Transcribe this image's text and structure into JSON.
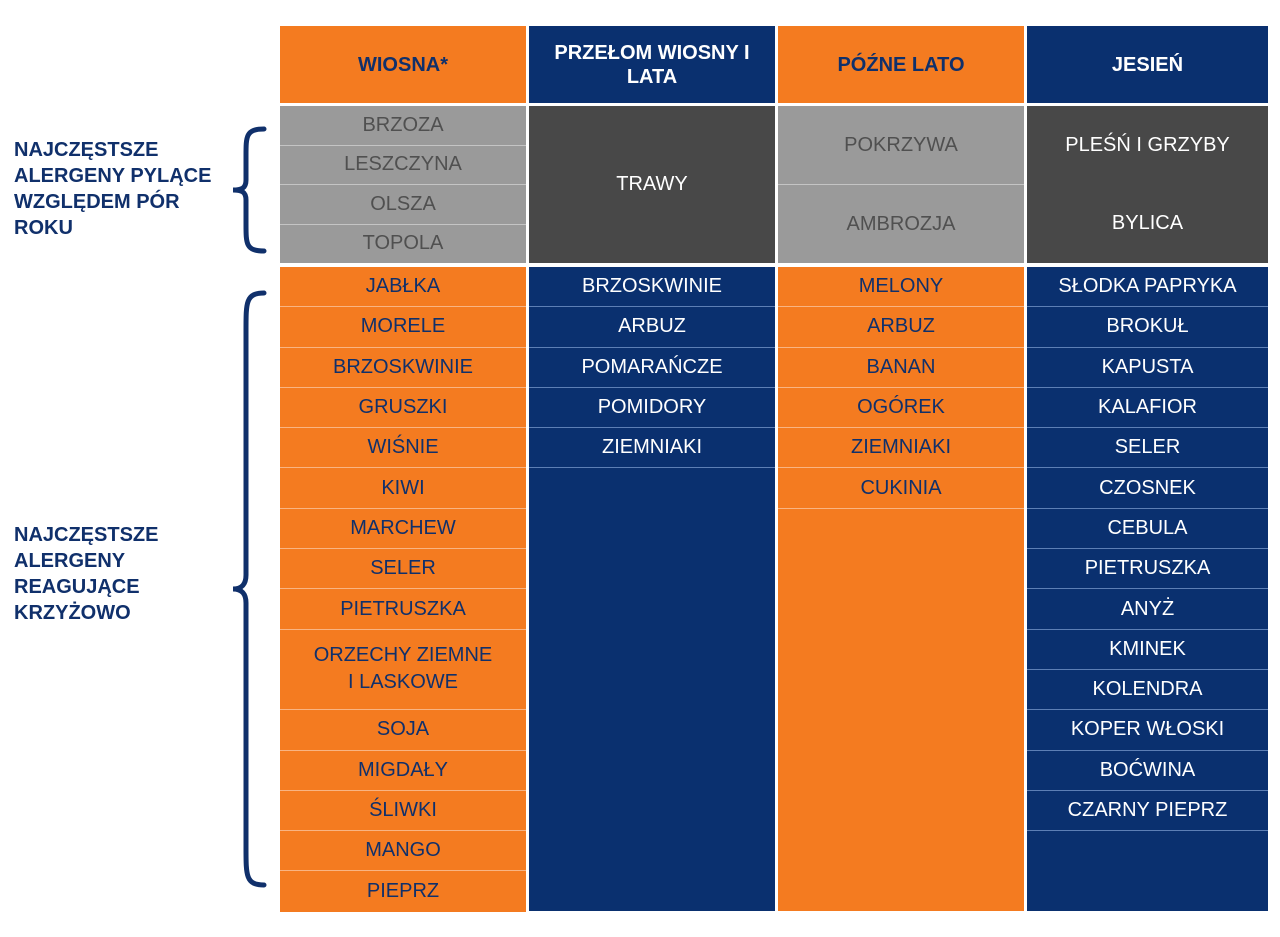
{
  "colors": {
    "orange": "#F47B20",
    "navy": "#0A306F",
    "light_gray": "#9A9A9A",
    "dark_gray": "#484848"
  },
  "side_labels": {
    "pollen": "NAJCZĘSTSZE ALERGENY PYLĄCE WZGLĘDEM PÓR ROKU",
    "cross": "NAJCZĘSTSZE ALERGENY REAGUJĄCE KRZYŻOWO"
  },
  "columns": [
    {
      "header": "WIOSNA*",
      "pollen": [
        "BRZOZA",
        "LESZCZYNA",
        "OLSZA",
        "TOPOLA"
      ],
      "cross": [
        "JABŁKA",
        "MORELE",
        "BRZOSKWINIE",
        "GRUSZKI",
        "WIŚNIE",
        "KIWI",
        "MARCHEW",
        "SELER",
        "PIETRUSZKA",
        "ORZECHY ZIEMNE I LASKOWE",
        "SOJA",
        "MIGDAŁY",
        "ŚLIWKI",
        "MANGO",
        "PIEPRZ"
      ]
    },
    {
      "header": "PRZEŁOM WIOSNY I LATA",
      "pollen": [
        "TRAWY"
      ],
      "cross": [
        "BRZOSKWINIE",
        "ARBUZ",
        "POMARAŃCZE",
        "POMIDORY",
        "ZIEMNIAKI"
      ]
    },
    {
      "header": "PÓŹNE LATO",
      "pollen": [
        "POKRZYWA",
        "AMBROZJA"
      ],
      "cross": [
        "MELONY",
        "ARBUZ",
        "BANAN",
        "OGÓREK",
        "ZIEMNIAKI",
        "CUKINIA"
      ]
    },
    {
      "header": "JESIEŃ",
      "pollen": [
        "PLEŚŃ I GRZYBY",
        "BYLICA"
      ],
      "cross": [
        "SŁODKA PAPRYKA",
        "BROKUŁ",
        "KAPUSTA",
        "KALAFIOR",
        "SELER",
        "CZOSNEK",
        "CEBULA",
        "PIETRUSZKA",
        "ANYŻ",
        "KMINEK",
        "KOLENDRA",
        "KOPER WŁOSKI",
        "BOĆWINA",
        "CZARNY PIEPRZ"
      ]
    }
  ]
}
